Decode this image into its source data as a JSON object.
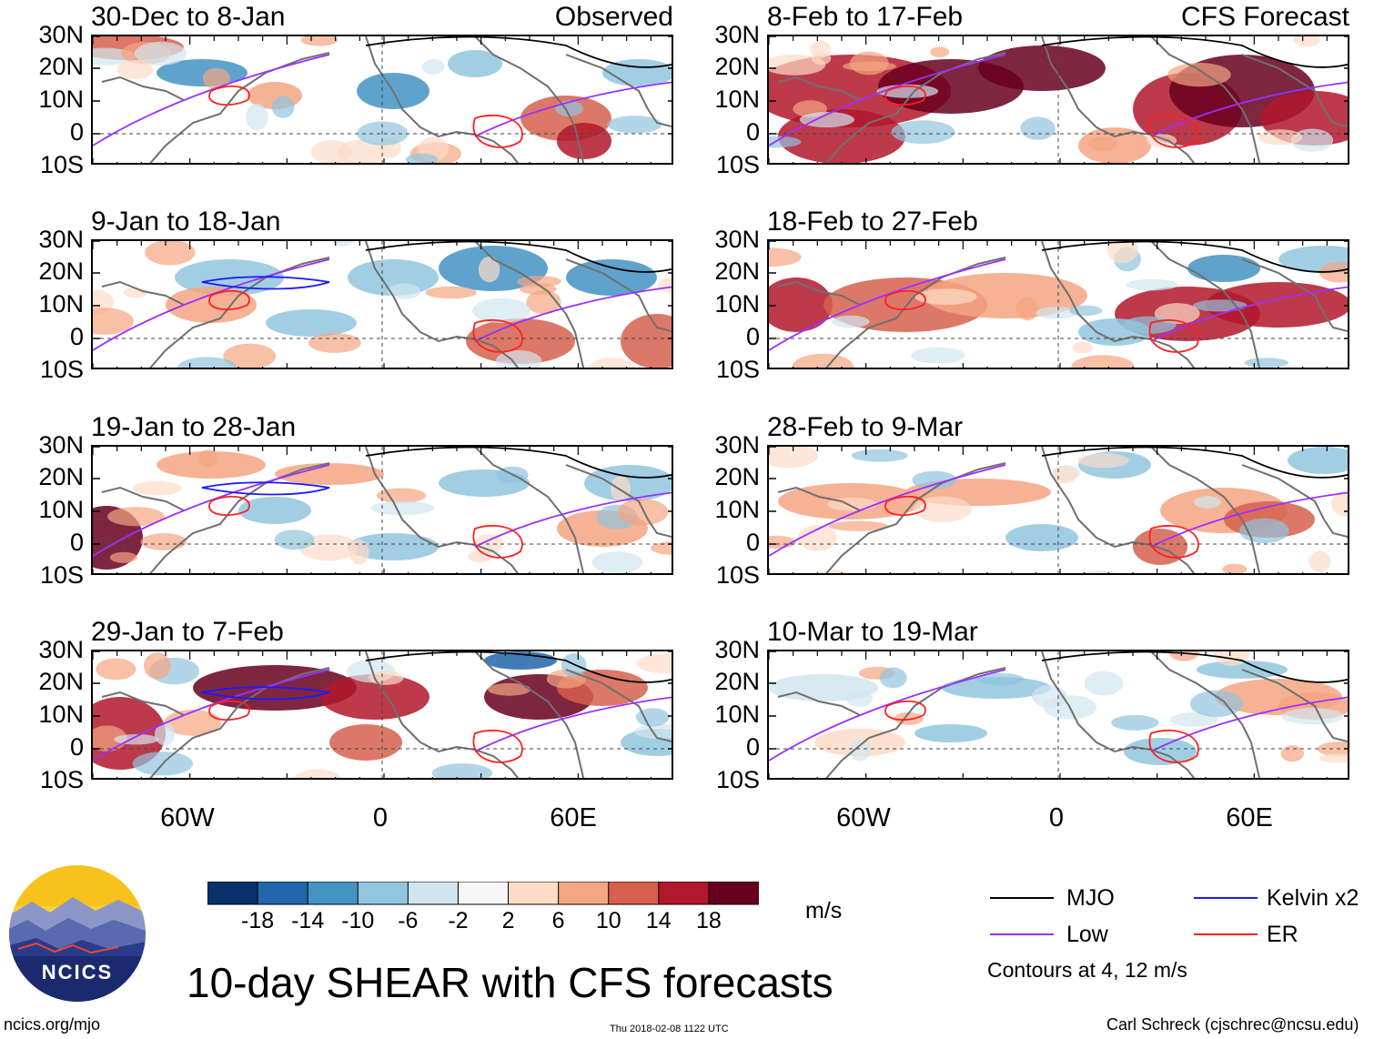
{
  "panels": [
    {
      "title": "30-Dec to 8-Jan",
      "label": "Observed"
    },
    {
      "title": "8-Feb to 17-Feb",
      "label": "CFS Forecast"
    },
    {
      "title": "9-Jan to 18-Jan",
      "label": ""
    },
    {
      "title": "18-Feb to 27-Feb",
      "label": ""
    },
    {
      "title": "19-Jan to 28-Jan",
      "label": ""
    },
    {
      "title": "28-Feb to 9-Mar",
      "label": ""
    },
    {
      "title": "29-Jan to 7-Feb",
      "label": ""
    },
    {
      "title": "10-Mar to 19-Mar",
      "label": ""
    }
  ],
  "lat_labels": [
    "30N",
    "20N",
    "10N",
    "0",
    "10S"
  ],
  "lon_labels": [
    "60W",
    "0",
    "60E"
  ],
  "colorbar": {
    "colors": [
      "#08306b",
      "#2166ac",
      "#4393c3",
      "#92c5de",
      "#d1e5f0",
      "#f7f7f7",
      "#fddbc7",
      "#f4a582",
      "#d6604d",
      "#b2182b",
      "#67001f"
    ],
    "tick_labels": [
      "-18",
      "-14",
      "-10",
      "-6",
      "-2",
      "2",
      "6",
      "10",
      "14",
      "18"
    ],
    "units": "m/s"
  },
  "legend": {
    "items": [
      {
        "label": "MJO",
        "color": "#000000"
      },
      {
        "label": "Kelvin x2",
        "color": "#1a1aff"
      },
      {
        "label": "Low",
        "color": "#9b30ff"
      },
      {
        "label": "ER",
        "color": "#ff2020"
      }
    ],
    "contours_note": "Contours at 4, 12 m/s"
  },
  "title": "10-day SHEAR with CFS forecasts",
  "logo_text": "NCICS",
  "footer": {
    "url": "ncics.org/mjo",
    "timestamp": "Thu 2018-02-08 1122 UTC",
    "author": "Carl Schreck (cjschrec@ncsu.edu)"
  }
}
